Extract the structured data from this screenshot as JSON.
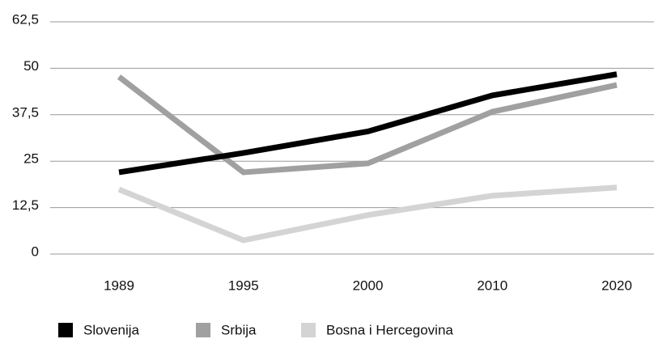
{
  "chart_data": {
    "type": "line",
    "categories": [
      "1989",
      "1995",
      "2000",
      "2010",
      "2020"
    ],
    "series": [
      {
        "name": "Slovenija",
        "color": "#000000",
        "values": [
          22,
          27.2,
          33,
          42.7,
          48.4
        ]
      },
      {
        "name": "Srbija",
        "color": "#a0a0a0",
        "values": [
          47.7,
          22,
          24.4,
          38.3,
          45.5
        ]
      },
      {
        "name": "Bosna i Hercegovina",
        "color": "#d4d4d4",
        "values": [
          17.4,
          3.7,
          10.5,
          15.7,
          17.9
        ]
      }
    ],
    "ylim": [
      0,
      62.5
    ],
    "yticks": [
      0,
      {
        "value": 12.5,
        "label": "12,5"
      },
      25,
      {
        "value": 37.5,
        "label": "37,5"
      },
      50,
      {
        "value": 62.5,
        "label": "62,5"
      }
    ],
    "grid": true
  }
}
